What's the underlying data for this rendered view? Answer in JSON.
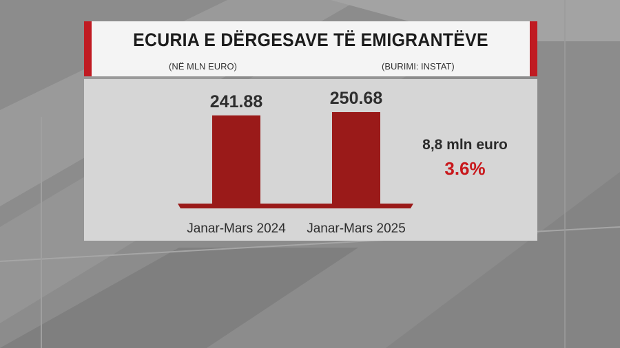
{
  "header": {
    "title": "ECURIA E DËRGESAVE TË EMIGRANTËVE",
    "unit_note": "(NË MLN EURO)",
    "source_note": "(BURIMI: INSTAT)"
  },
  "annotation": {
    "amount": "8,8 mln euro",
    "percent": "3.6%"
  },
  "colors": {
    "bar": "#9a1a19",
    "accent": "#c01b22",
    "percent": "#c8181c"
  },
  "chart_data": {
    "type": "bar",
    "title": "ECURIA E DËRGESAVE TË EMIGRANTËVE",
    "categories": [
      "Janar-Mars 2024",
      "Janar-Mars 2025"
    ],
    "values": [
      241.88,
      250.68
    ],
    "value_labels": [
      "241.88",
      "250.68"
    ],
    "xlabel": "",
    "ylabel": "",
    "grid": false,
    "legend": "none"
  }
}
